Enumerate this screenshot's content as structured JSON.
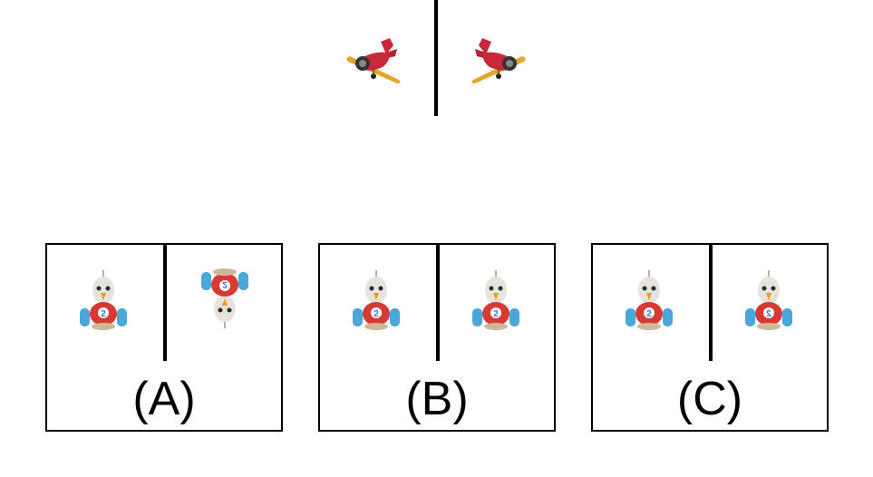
{
  "prompt": {
    "left_icon": "airplane-icon",
    "right_icon": "airplane-icon-mirrored"
  },
  "options": [
    {
      "label": "(A)",
      "left_icon": "toy-car-icon",
      "right_icon": "toy-car-icon-upside-down"
    },
    {
      "label": "(B)",
      "left_icon": "toy-car-icon",
      "right_icon": "toy-car-icon"
    },
    {
      "label": "(C)",
      "left_icon": "toy-car-icon",
      "right_icon": "toy-car-icon-mirrored"
    }
  ],
  "colors": {
    "line": "#000000",
    "plane_wing": "#e0a72a",
    "plane_body": "#c8283a",
    "car_body": "#d63a33",
    "car_wheel": "#4aa8d8",
    "car_head": "#e6e3dc",
    "car_beak": "#f09a1a"
  }
}
